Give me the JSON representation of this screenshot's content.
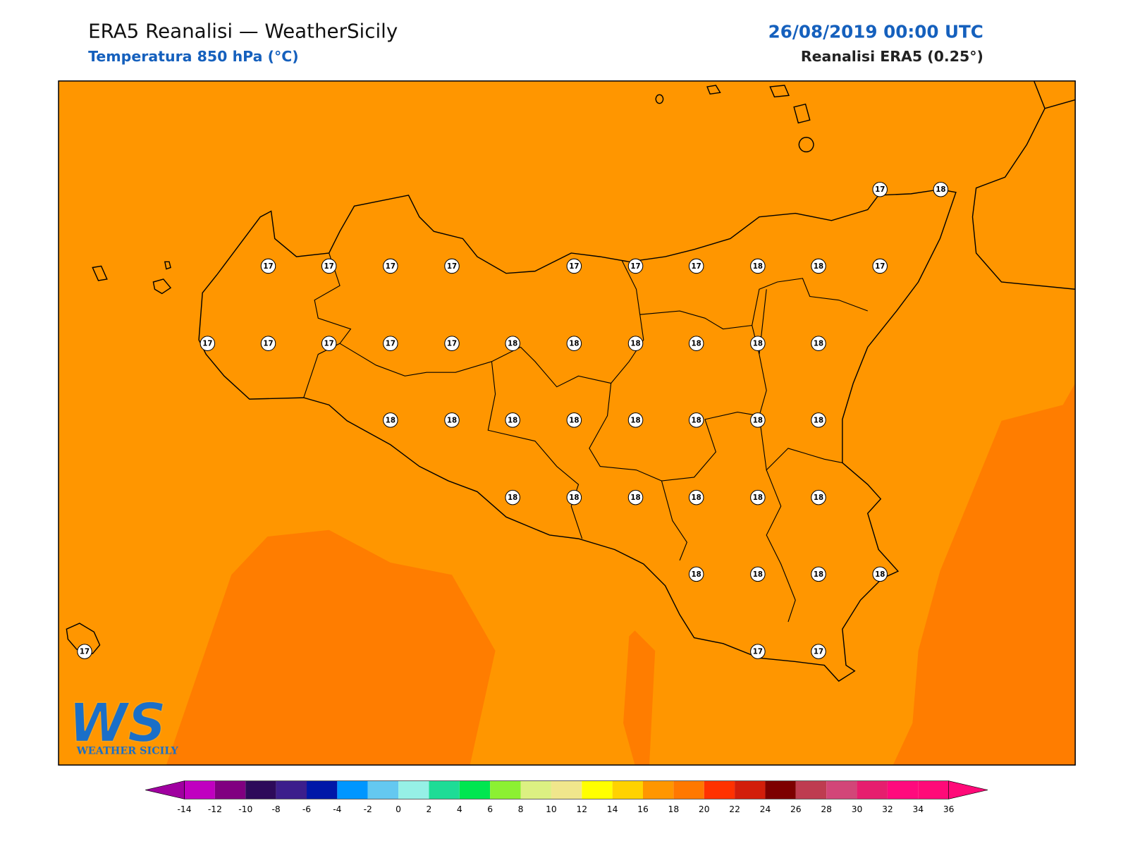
{
  "header": {
    "title": "ERA5 Reanalisi — WeatherSicily",
    "subtitle": "Temperatura 850 hPa (°C)",
    "date": "26/08/2019 00:00 UTC",
    "source": "Reanalisi ERA5 (0.25°)"
  },
  "stations": [
    17,
    18,
    17,
    17,
    17,
    17,
    17,
    17,
    17,
    18,
    18,
    17,
    17,
    17,
    17,
    17,
    17,
    18,
    18,
    18,
    18,
    18,
    18,
    18,
    18,
    18,
    18,
    18,
    18,
    18,
    18,
    18,
    18,
    18,
    18,
    18,
    18,
    18,
    18,
    18,
    18,
    17,
    17,
    17
  ],
  "logo": {
    "main": "WS",
    "sub": "WEATHER SICILY"
  },
  "colorbar": {
    "ticks": [
      -14,
      -12,
      -10,
      -8,
      -6,
      -4,
      -2,
      0,
      2,
      4,
      6,
      8,
      10,
      12,
      14,
      16,
      18,
      20,
      22,
      24,
      26,
      28,
      30,
      32,
      34,
      36
    ],
    "colors": [
      "#c000c0",
      "#800080",
      "#2d0a5a",
      "#3c1e8c",
      "#0018a8",
      "#0096ff",
      "#64c8f0",
      "#96f0e6",
      "#1edc96",
      "#00e650",
      "#8cf032",
      "#dcf082",
      "#f0e68c",
      "#ffff00",
      "#ffd200",
      "#ff9600",
      "#ff7800",
      "#ff3200",
      "#d21e0a",
      "#7d0000",
      "#be3c50",
      "#d24678",
      "#e61e6e",
      "#ff0a7d",
      "#ff0a78"
    ],
    "under_color": "#a000a0",
    "over_color": "#ff0a78"
  }
}
